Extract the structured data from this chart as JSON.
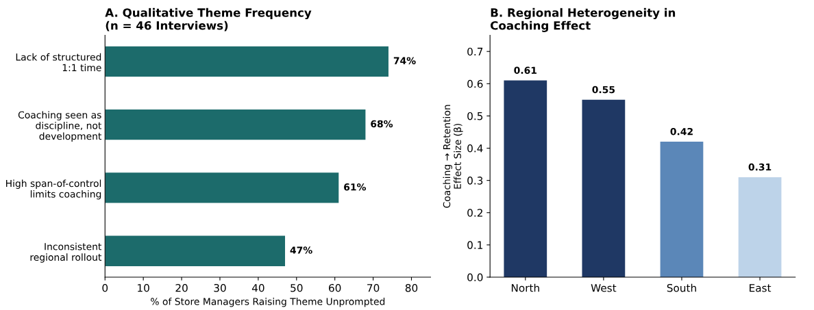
{
  "chart_data": [
    {
      "type": "bar",
      "orientation": "horizontal",
      "title": "A. Qualitative Theme Frequency\n(n = 46 Interviews)",
      "xlabel": "% of Store Managers Raising Theme Unprompted",
      "categories": [
        "Lack of structured\n1:1 time",
        "Coaching seen as\ndiscipline, not\ndevelopment",
        "High span-of-control\nlimits coaching",
        "Inconsistent\nregional rollout"
      ],
      "values": [
        74,
        68,
        61,
        47
      ],
      "color": "#1c6b6b",
      "value_labels": [
        "74%",
        "68%",
        "61%",
        "47%"
      ],
      "xlim": [
        0,
        85
      ],
      "xticks": [
        0,
        10,
        20,
        30,
        40,
        50,
        60,
        70,
        80
      ],
      "grid": false
    },
    {
      "type": "bar",
      "title": "B. Regional Heterogeneity in\nCoaching Effect",
      "ylabel": "Coaching → Retention\nEffect Size (β)",
      "categories": [
        "North",
        "West",
        "South",
        "East"
      ],
      "values": [
        0.61,
        0.55,
        0.42,
        0.31
      ],
      "colors": [
        "#1f3864",
        "#1f3864",
        "#5b87b8",
        "#bdd3e9"
      ],
      "data_labels": true,
      "ylim": [
        0,
        0.75
      ],
      "yticks": [
        {
          "value": 0,
          "label": "0.0"
        },
        0.1,
        0.2,
        0.3,
        0.4,
        0.5,
        0.6,
        0.7
      ],
      "grid": false
    }
  ]
}
